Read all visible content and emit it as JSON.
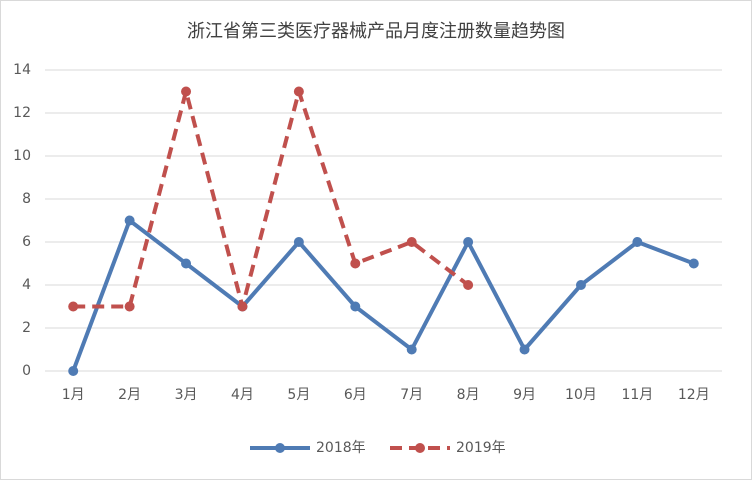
{
  "chart_data": {
    "type": "line",
    "title": "浙江省第三类医疗器械产品月度注册数量趋势图",
    "categories": [
      "1月",
      "2月",
      "3月",
      "4月",
      "5月",
      "6月",
      "7月",
      "8月",
      "9月",
      "10月",
      "11月",
      "12月"
    ],
    "series": [
      {
        "name": "2018年",
        "color": "#4f7bb4",
        "dashed": false,
        "values": [
          0,
          7,
          5,
          3,
          6,
          3,
          1,
          6,
          1,
          4,
          6,
          5
        ]
      },
      {
        "name": "2019年",
        "color": "#c0504d",
        "dashed": true,
        "values": [
          3,
          3,
          13,
          3,
          13,
          5,
          6,
          4,
          null,
          null,
          null,
          null
        ]
      }
    ],
    "ylim": [
      0,
      14
    ],
    "yticks": [
      0,
      2,
      4,
      6,
      8,
      10,
      12,
      14
    ],
    "grid": true,
    "legend": "bottom"
  }
}
